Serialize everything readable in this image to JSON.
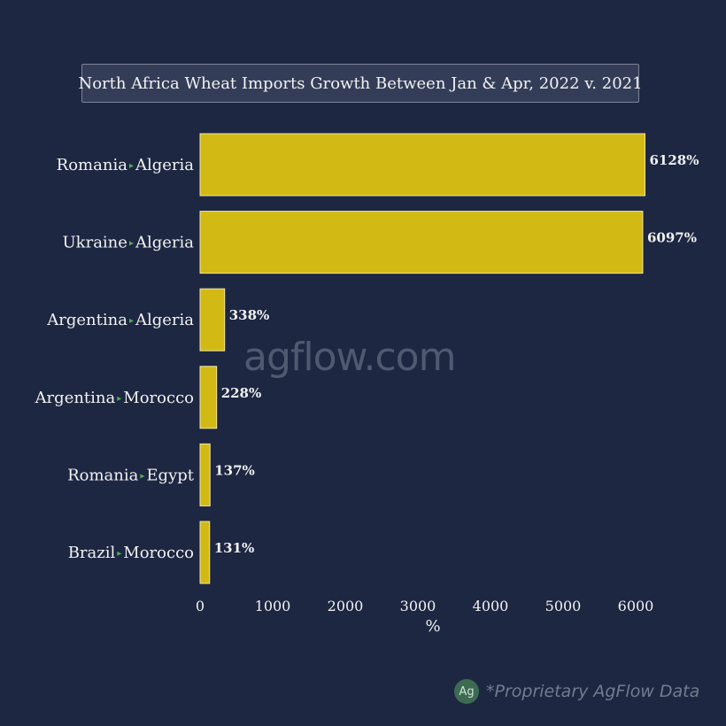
{
  "chart_data": {
    "type": "bar",
    "orientation": "horizontal",
    "title": "North Africa Wheat Imports Growth Between Jan & Apr, 2022 v. 2021",
    "categories": [
      {
        "origin": "Romania",
        "destination": "Algeria"
      },
      {
        "origin": "Ukraine",
        "destination": "Algeria"
      },
      {
        "origin": "Argentina",
        "destination": "Algeria"
      },
      {
        "origin": "Argentina",
        "destination": "Morocco"
      },
      {
        "origin": "Romania",
        "destination": "Egypt"
      },
      {
        "origin": "Brazil",
        "destination": "Morocco"
      }
    ],
    "values": [
      6128,
      6097,
      338,
      228,
      137,
      131
    ],
    "value_labels": [
      "6128%",
      "6097%",
      "338%",
      "228%",
      "137%",
      "131%"
    ],
    "xlabel": "%",
    "ylabel": "",
    "xlim": [
      0,
      6000
    ],
    "xticks": [
      0,
      1000,
      2000,
      3000,
      4000,
      5000,
      6000
    ],
    "grid": false,
    "colors": {
      "bar": "#d3b914",
      "bar_border": "#f0e6a8",
      "arrow": "#4caf50",
      "background": "#1d2742",
      "text": "#f2f2f2"
    }
  },
  "watermark": "agflow.com",
  "footer": {
    "logo_text": "Ag",
    "text": "*Proprietary AgFlow Data"
  }
}
